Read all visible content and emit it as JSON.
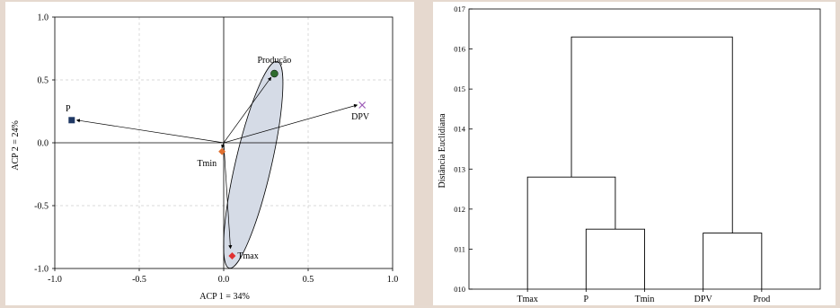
{
  "chart_data": [
    {
      "type": "scatter",
      "xlabel": "ACP 1 = 34%",
      "ylabel": "ACP 2 = 24%",
      "xlim": [
        -1.0,
        1.0
      ],
      "ylim": [
        -1.0,
        1.0
      ],
      "xticks": [
        "-1.0",
        "-0.5",
        "0.0",
        "0.5",
        "1.0"
      ],
      "yticks": [
        "-1.0",
        "-0.5",
        "0.0",
        "0.5",
        "1.0"
      ],
      "grid": true,
      "points": [
        {
          "label": "P",
          "x": -0.9,
          "y": 0.18,
          "marker": "square",
          "color": "#1f3864"
        },
        {
          "label": "Produção",
          "x": 0.3,
          "y": 0.55,
          "marker": "circle",
          "color": "#2e6b2e"
        },
        {
          "label": "DPV",
          "x": 0.82,
          "y": 0.3,
          "marker": "x",
          "color": "#9b59b6"
        },
        {
          "label": "Tmin",
          "x": -0.01,
          "y": -0.07,
          "marker": "diamond",
          "color": "#e07030"
        },
        {
          "label": "Tmax",
          "x": 0.05,
          "y": -0.9,
          "marker": "diamond",
          "color": "#e03030"
        }
      ],
      "vectors": [
        {
          "to": "P",
          "x": -0.87,
          "y": 0.18
        },
        {
          "to": "Produção",
          "x": 0.28,
          "y": 0.52
        },
        {
          "to": "DPV",
          "x": 0.79,
          "y": 0.3
        },
        {
          "to": "Tmin",
          "x": -0.01,
          "y": -0.04
        },
        {
          "to": "Tmax",
          "x": 0.04,
          "y": -0.84
        }
      ],
      "ellipse": {
        "fill": "#d5dbe6",
        "stroke": "#000000"
      }
    },
    {
      "type": "dendrogram",
      "ylabel": "Distância Euclidiana",
      "ylim": [
        10,
        17
      ],
      "yticks": [
        "010",
        "011",
        "012",
        "013",
        "014",
        "015",
        "016",
        "017"
      ],
      "leaves": [
        "Tmax",
        "P",
        "Tmin",
        "DPV",
        "Prod"
      ],
      "merges": [
        {
          "left": "P",
          "right": "Tmin",
          "height": 11.5
        },
        {
          "left": "DPV",
          "right": "Prod",
          "height": 11.4
        },
        {
          "left": "Tmax",
          "right": "P+Tmin",
          "height": 12.8
        },
        {
          "left": "Tmax+P+Tmin",
          "right": "DPV+Prod",
          "height": 16.3
        }
      ]
    }
  ]
}
